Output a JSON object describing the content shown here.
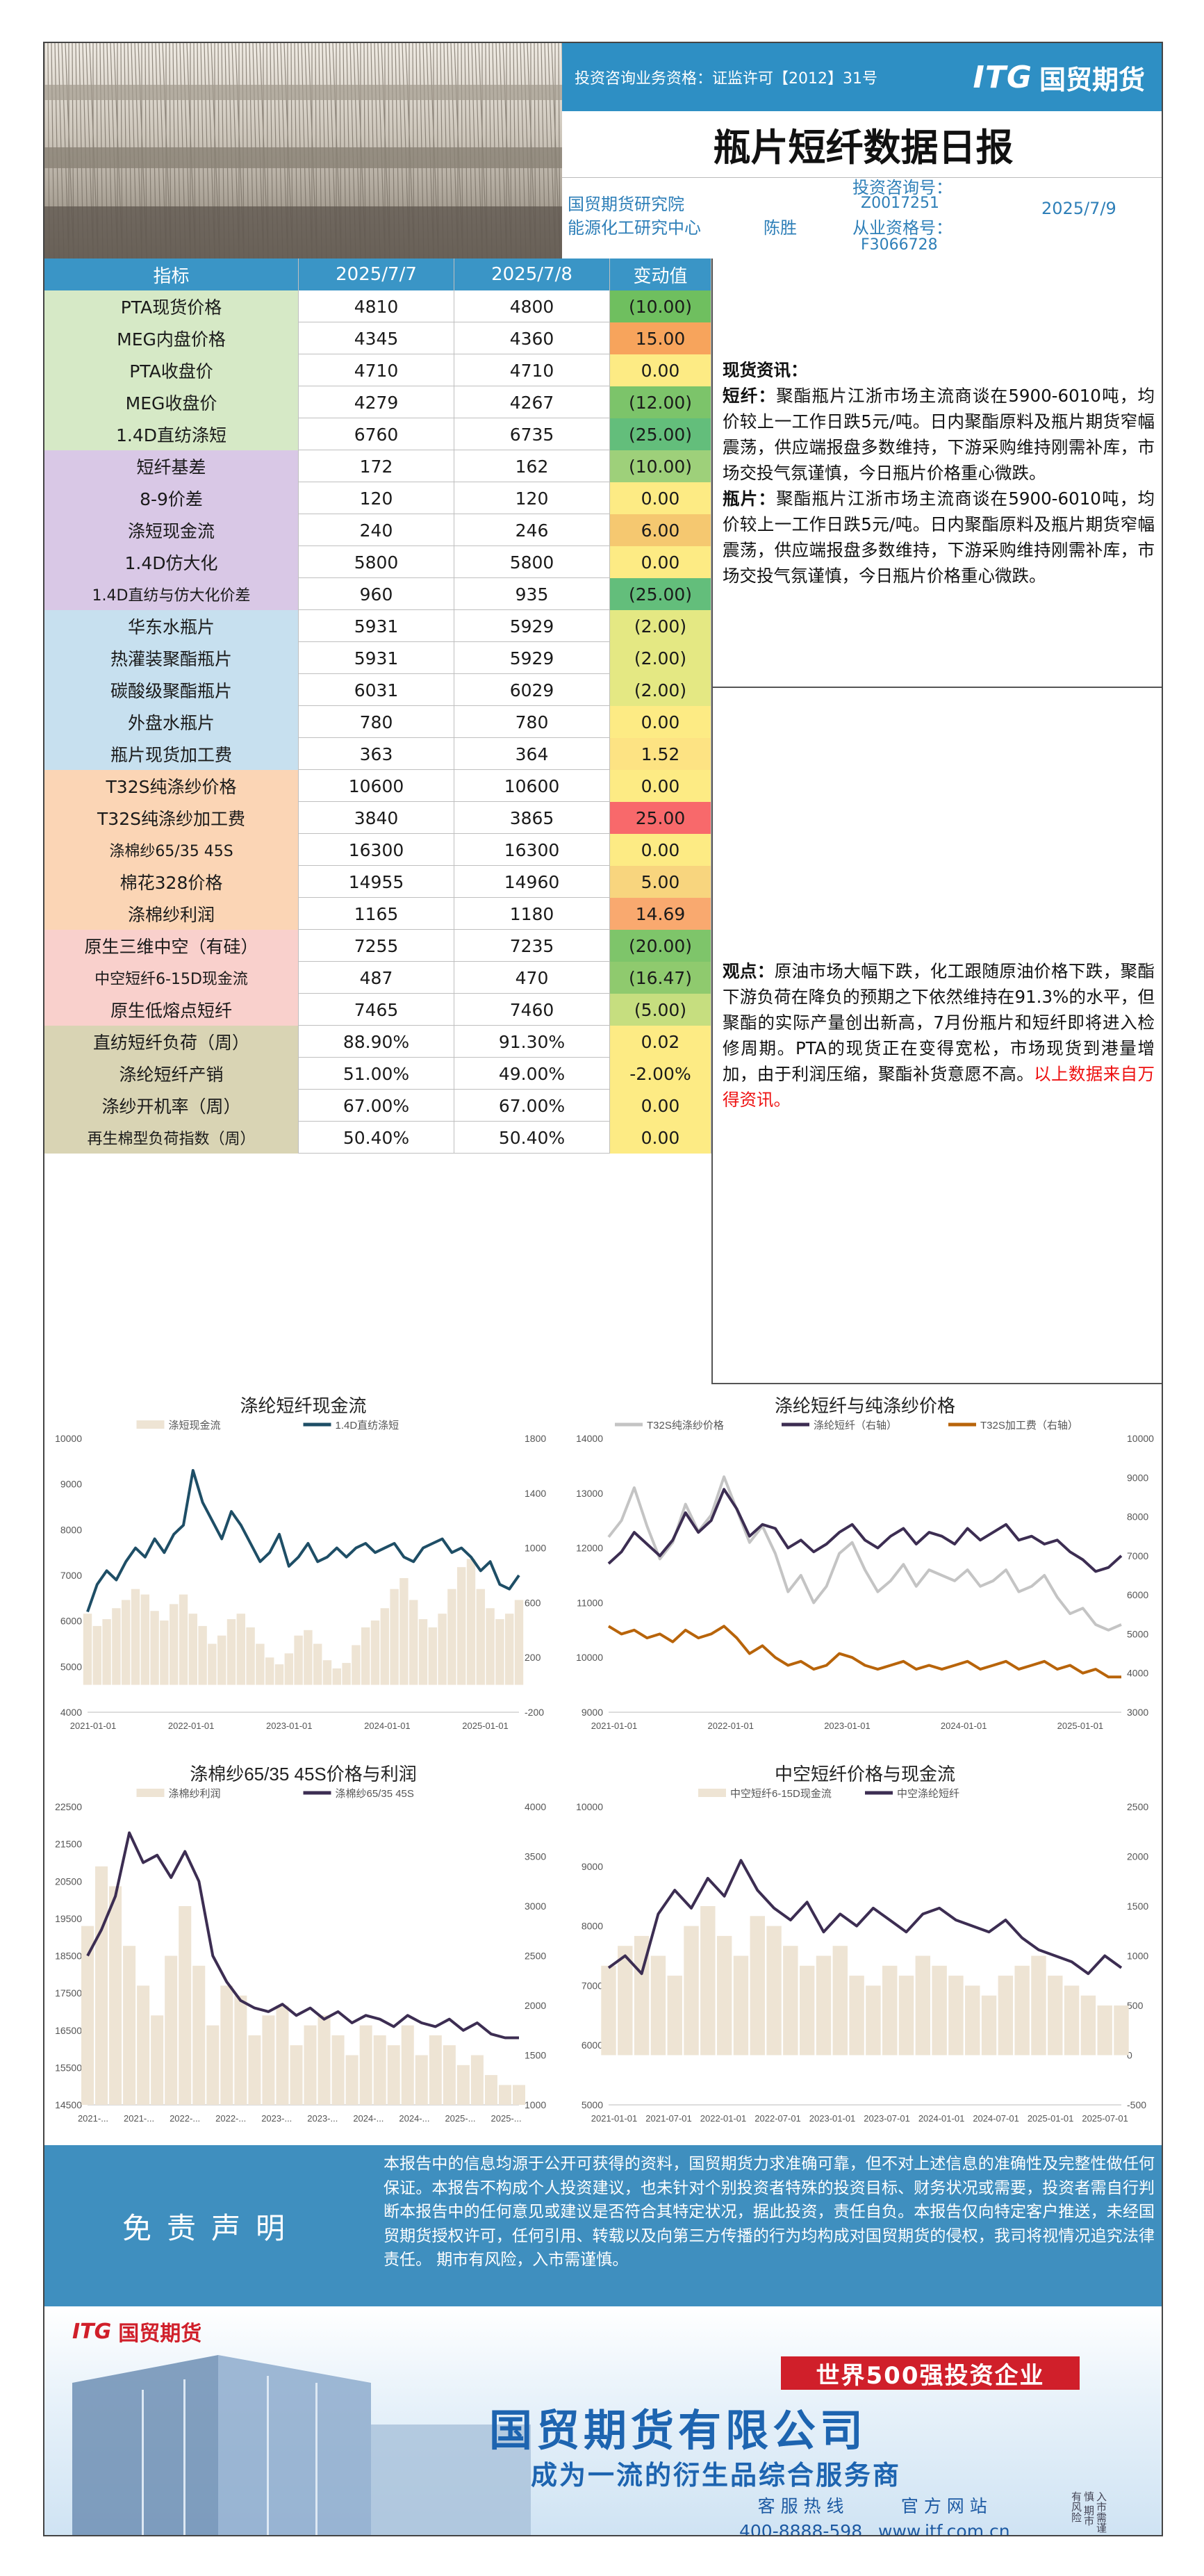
{
  "header": {
    "license": "投资咨询业务资格：证监许可【2012】31号",
    "logo_itg": "ITG",
    "logo_cn": "国贸期货",
    "title": "瓶片短纤数据日报",
    "org1": "国贸期货研究院",
    "org2": "能源化工研究中心",
    "analyst": "陈胜",
    "consult_label": "投资咨询号：",
    "consult_no": "Z0017251",
    "practice_label": "从业资格号：",
    "practice_no": "F3066728",
    "date": "2025/7/9"
  },
  "table": {
    "headers": [
      "指标",
      "2025/7/7",
      "2025/7/8",
      "变动值"
    ],
    "rows": [
      {
        "name": "PTA现货价格",
        "v1": "4810",
        "v2": "4800",
        "chg": "(10.00)",
        "name_bg": "#d6e9c6",
        "chg_bg": "#6fbf5f"
      },
      {
        "name": "MEG内盘价格",
        "v1": "4345",
        "v2": "4360",
        "chg": "15.00",
        "name_bg": "#d6e9c6",
        "chg_bg": "#f7a45c"
      },
      {
        "name": "PTA收盘价",
        "v1": "4710",
        "v2": "4710",
        "chg": "0.00",
        "name_bg": "#d6e9c6",
        "chg_bg": "#fdeb84"
      },
      {
        "name": "MEG收盘价",
        "v1": "4279",
        "v2": "4267",
        "chg": "(12.00)",
        "name_bg": "#d6e9c6",
        "chg_bg": "#7cc46a"
      },
      {
        "name": "1.4D直纺涤短",
        "v1": "6760",
        "v2": "6735",
        "chg": "(25.00)",
        "name_bg": "#d6e9c6",
        "chg_bg": "#63be7b"
      },
      {
        "name": "短纤基差",
        "v1": "172",
        "v2": "162",
        "chg": "(10.00)",
        "name_bg": "#d9c8e6",
        "chg_bg": "#9ed07a"
      },
      {
        "name": "8-9价差",
        "v1": "120",
        "v2": "120",
        "chg": "0.00",
        "name_bg": "#d9c8e6",
        "chg_bg": "#fdeb84"
      },
      {
        "name": "涤短现金流",
        "v1": "240",
        "v2": "246",
        "chg": "6.00",
        "name_bg": "#d9c8e6",
        "chg_bg": "#f5c870"
      },
      {
        "name": "1.4D仿大化",
        "v1": "5800",
        "v2": "5800",
        "chg": "0.00",
        "name_bg": "#d9c8e6",
        "chg_bg": "#fdeb84"
      },
      {
        "name": "1.4D直纺与仿大化价差",
        "v1": "960",
        "v2": "935",
        "chg": "(25.00)",
        "name_bg": "#d9c8e6",
        "chg_bg": "#63be7b"
      },
      {
        "name": "华东水瓶片",
        "v1": "5931",
        "v2": "5929",
        "chg": "(2.00)",
        "name_bg": "#c7e0ef",
        "chg_bg": "#e4e883"
      },
      {
        "name": "热灌装聚酯瓶片",
        "v1": "5931",
        "v2": "5929",
        "chg": "(2.00)",
        "name_bg": "#c7e0ef",
        "chg_bg": "#e4e883"
      },
      {
        "name": "碳酸级聚酯瓶片",
        "v1": "6031",
        "v2": "6029",
        "chg": "(2.00)",
        "name_bg": "#c7e0ef",
        "chg_bg": "#e4e883"
      },
      {
        "name": "外盘水瓶片",
        "v1": "780",
        "v2": "780",
        "chg": "0.00",
        "name_bg": "#c7e0ef",
        "chg_bg": "#fdeb84"
      },
      {
        "name": "瓶片现货加工费",
        "v1": "363",
        "v2": "364",
        "chg": "1.52",
        "name_bg": "#c7e0ef",
        "chg_bg": "#fde383"
      },
      {
        "name": "T32S纯涤纱价格",
        "v1": "10600",
        "v2": "10600",
        "chg": "0.00",
        "name_bg": "#fbd5b5",
        "chg_bg": "#fdeb84"
      },
      {
        "name": "T32S纯涤纱加工费",
        "v1": "3840",
        "v2": "3865",
        "chg": "25.00",
        "name_bg": "#fbd5b5",
        "chg_bg": "#f8696b"
      },
      {
        "name": "涤棉纱65/35 45S",
        "v1": "16300",
        "v2": "16300",
        "chg": "0.00",
        "name_bg": "#fbd5b5",
        "chg_bg": "#fdeb84"
      },
      {
        "name": "棉花328价格",
        "v1": "14955",
        "v2": "14960",
        "chg": "5.00",
        "name_bg": "#fbd5b5",
        "chg_bg": "#f8d57e"
      },
      {
        "name": "涤棉纱利润",
        "v1": "1165",
        "v2": "1180",
        "chg": "14.69",
        "name_bg": "#fbd5b5",
        "chg_bg": "#f9a96f"
      },
      {
        "name": "原生三维中空（有硅）",
        "v1": "7255",
        "v2": "7235",
        "chg": "(20.00)",
        "name_bg": "#f9d0cc",
        "chg_bg": "#7ec56a"
      },
      {
        "name": "中空短纤6-15D现金流",
        "v1": "487",
        "v2": "470",
        "chg": "(16.47)",
        "name_bg": "#f9d0cc",
        "chg_bg": "#8fca6e"
      },
      {
        "name": "原生低熔点短纤",
        "v1": "7465",
        "v2": "7460",
        "chg": "(5.00)",
        "name_bg": "#f9d0cc",
        "chg_bg": "#c6de7f"
      },
      {
        "name": "直纺短纤负荷（周）",
        "v1": "88.90%",
        "v2": "91.30%",
        "chg": "0.02",
        "name_bg": "#d9d4b4",
        "chg_bg": "#fdeb84"
      },
      {
        "name": "涤纶短纤产销",
        "v1": "51.00%",
        "v2": "49.00%",
        "chg": "-2.00%",
        "name_bg": "#d9d4b4",
        "chg_bg": "#fdeb84"
      },
      {
        "name": "涤纱开机率（周）",
        "v1": "67.00%",
        "v2": "67.00%",
        "chg": "0.00",
        "name_bg": "#d9d4b4",
        "chg_bg": "#fdeb84"
      },
      {
        "name": "再生棉型负荷指数（周）",
        "v1": "50.40%",
        "v2": "50.40%",
        "chg": "0.00",
        "name_bg": "#d9d4b4",
        "chg_bg": "#fdeb84"
      }
    ]
  },
  "commentary": {
    "spot_title": "现货资讯：",
    "pf_label": "短纤：",
    "pf_text": "聚酯瓶片江浙市场主流商谈在5900-6010吨，均价较上一工作日跌5元/吨。日内聚酯原料及瓶片期货窄幅震荡，供应端报盘多数维持，下游采购维持刚需补库，市场交投气氛谨慎，今日瓶片价格重心微跌。",
    "bottle_label": "瓶片：",
    "bottle_text": "聚酯瓶片江浙市场主流商谈在5900-6010吨，均价较上一工作日跌5元/吨。日内聚酯原料及瓶片期货窄幅震荡，供应端报盘多数维持，下游采购维持刚需补库，市场交投气氛谨慎，今日瓶片价格重心微跌。",
    "view_label": "观点：",
    "view_text": "原油市场大幅下跌，化工跟随原油价格下跌，聚酯下游负荷在降负的预期之下依然维持在91.3%的水平，但聚酯的实际产量创出新高，7月份瓶片和短纤即将进入检修周期。PTA的现货正在变得宽松，市场现货到港量增加，由于利润压缩，聚酯补货意愿不高。",
    "source_note": "以上数据来自万得资讯。"
  },
  "chart_data": [
    {
      "type": "line",
      "title": "涤纶短纤现金流",
      "x_ticks": [
        "2021-01-01",
        "2022-01-01",
        "2023-01-01",
        "2024-01-01",
        "2025-01-01"
      ],
      "ylim_left": [
        4000,
        10000
      ],
      "y_ticks_left": [
        "4000",
        "5000",
        "6000",
        "7000",
        "8000",
        "9000",
        "10000"
      ],
      "ylim_right": [
        -200,
        1800
      ],
      "y_ticks_right": [
        "-200",
        "200",
        "600",
        "1000",
        "1400",
        "1800"
      ],
      "series": [
        {
          "name": "涤短现金流",
          "axis": "right",
          "kind": "area",
          "color": "#eee4d4",
          "values": [
            520,
            430,
            480,
            560,
            620,
            700,
            660,
            540,
            470,
            590,
            660,
            520,
            430,
            300,
            360,
            480,
            520,
            420,
            300,
            200,
            150,
            230,
            360,
            400,
            300,
            180,
            120,
            160,
            290,
            420,
            470,
            560,
            700,
            780,
            620,
            480,
            420,
            520,
            700,
            860,
            920,
            700,
            560,
            480,
            520,
            620
          ]
        },
        {
          "name": "1.4D直纺涤短",
          "axis": "left",
          "kind": "line",
          "color": "#1e4e66",
          "values": [
            6200,
            6800,
            7100,
            6900,
            7300,
            7600,
            7400,
            7800,
            7500,
            7900,
            8100,
            9300,
            8600,
            8200,
            7800,
            8400,
            8100,
            7700,
            7300,
            7500,
            7900,
            7200,
            7400,
            7700,
            7300,
            7400,
            7600,
            7400,
            7600,
            7700,
            7500,
            7600,
            7700,
            7400,
            7300,
            7600,
            7700,
            7800,
            7500,
            7600,
            7400,
            7100,
            7300,
            6800,
            6700,
            7000
          ]
        }
      ]
    },
    {
      "type": "line",
      "title": "涤纶短纤与纯涤纱价格",
      "x_ticks": [
        "2021-01-01",
        "2022-01-01",
        "2023-01-01",
        "2024-01-01",
        "2025-01-01"
      ],
      "ylim_left": [
        9000,
        14000
      ],
      "y_ticks_left": [
        "9000",
        "10000",
        "11000",
        "12000",
        "13000",
        "14000"
      ],
      "ylim_right": [
        3000,
        10000
      ],
      "y_ticks_right": [
        "3000",
        "4000",
        "5000",
        "6000",
        "7000",
        "8000",
        "9000",
        "10000"
      ],
      "series": [
        {
          "name": "T32S纯涤纱价格",
          "axis": "left",
          "color": "#c4c4c4",
          "values": [
            12200,
            12500,
            13100,
            12400,
            11800,
            12100,
            12800,
            12300,
            12600,
            13300,
            12700,
            12100,
            12400,
            11900,
            11200,
            11500,
            11000,
            11300,
            11900,
            12100,
            11600,
            11200,
            11400,
            11700,
            11300,
            11600,
            11500,
            11400,
            11600,
            11300,
            11400,
            11600,
            11200,
            11300,
            11500,
            11100,
            10800,
            10900,
            10600,
            10500,
            10600
          ]
        },
        {
          "name": "涤纶短纤（右轴）",
          "axis": "right",
          "color": "#3c2d52",
          "values": [
            6800,
            7100,
            7600,
            7300,
            7000,
            7400,
            8100,
            7600,
            7900,
            8700,
            8200,
            7500,
            7800,
            7700,
            7200,
            7400,
            7100,
            7300,
            7600,
            7800,
            7400,
            7200,
            7500,
            7700,
            7300,
            7600,
            7500,
            7300,
            7700,
            7400,
            7600,
            7800,
            7400,
            7500,
            7300,
            7400,
            7100,
            6900,
            6600,
            6700,
            7000
          ]
        },
        {
          "name": "T32S加工费（右轴）",
          "axis": "right",
          "color": "#b8640a",
          "values": [
            5200,
            5000,
            5100,
            4900,
            5000,
            4800,
            5100,
            4900,
            5000,
            5200,
            4900,
            4500,
            4700,
            4400,
            4200,
            4300,
            4100,
            4200,
            4500,
            4400,
            4200,
            4100,
            4200,
            4300,
            4100,
            4200,
            4100,
            4200,
            4300,
            4100,
            4200,
            4300,
            4100,
            4200,
            4300,
            4100,
            4200,
            4000,
            4100,
            3900,
            3900
          ]
        }
      ]
    },
    {
      "type": "line",
      "title": "涤棉纱65/35 45S价格与利润",
      "x_ticks": [
        "2021-...",
        "2021-...",
        "2022-...",
        "2022-...",
        "2023-...",
        "2023-...",
        "2024-...",
        "2024-...",
        "2025-...",
        "2025-..."
      ],
      "ylim_left": [
        14500,
        22500
      ],
      "y_ticks_left": [
        "14500",
        "15500",
        "16500",
        "17500",
        "18500",
        "19500",
        "20500",
        "21500",
        "22500"
      ],
      "ylim_right": [
        1000,
        4000
      ],
      "y_ticks_right": [
        "1000",
        "1500",
        "2000",
        "2500",
        "3000",
        "3500",
        "4000"
      ],
      "series": [
        {
          "name": "涤棉纱利润",
          "axis": "right",
          "kind": "area",
          "color": "#eee4d4",
          "values": [
            2800,
            3400,
            3200,
            2600,
            2200,
            1900,
            2500,
            3000,
            2400,
            1800,
            2200,
            2100,
            1700,
            1900,
            2000,
            1600,
            1800,
            1900,
            1700,
            1500,
            1800,
            1700,
            1600,
            1800,
            1500,
            1700,
            1600,
            1400,
            1500,
            1300,
            1200,
            1200
          ]
        },
        {
          "name": "涤棉纱65/35 45S",
          "axis": "left",
          "kind": "line",
          "color": "#3c2d52",
          "values": [
            18500,
            19200,
            20100,
            21800,
            21000,
            21200,
            20600,
            21300,
            20500,
            18500,
            17800,
            17300,
            17100,
            17000,
            17200,
            16900,
            17100,
            16800,
            17000,
            16700,
            16900,
            16800,
            16600,
            16900,
            16700,
            16600,
            16800,
            16500,
            16700,
            16400,
            16300,
            16300
          ]
        }
      ]
    },
    {
      "type": "line",
      "title": "中空短纤价格与现金流",
      "x_ticks": [
        "2021-01-01",
        "2021-07-01",
        "2022-01-01",
        "2022-07-01",
        "2023-01-01",
        "2023-07-01",
        "2024-01-01",
        "2024-07-01",
        "2025-01-01",
        "2025-07-01"
      ],
      "ylim_left": [
        5000,
        10000
      ],
      "y_ticks_left": [
        "5000",
        "6000",
        "7000",
        "8000",
        "9000",
        "10000"
      ],
      "ylim_right": [
        -500,
        2500
      ],
      "y_ticks_right": [
        "-500",
        "0",
        "500",
        "1000",
        "1500",
        "2000",
        "2500"
      ],
      "series": [
        {
          "name": "中空短纤6-15D现金流",
          "axis": "right",
          "kind": "area",
          "color": "#eee4d4",
          "values": [
            900,
            1100,
            1200,
            1000,
            800,
            1300,
            1500,
            1200,
            1000,
            1400,
            1300,
            1100,
            900,
            1000,
            1100,
            800,
            700,
            900,
            800,
            1000,
            900,
            800,
            700,
            600,
            800,
            900,
            1000,
            800,
            700,
            600,
            500,
            500
          ]
        },
        {
          "name": "中空涤纶短纤",
          "axis": "left",
          "kind": "line",
          "color": "#3c2d52",
          "values": [
            7300,
            7500,
            7200,
            8200,
            8600,
            8300,
            8800,
            8500,
            9100,
            8600,
            8300,
            8100,
            8400,
            7900,
            8200,
            8000,
            8300,
            8100,
            7900,
            8200,
            8300,
            8100,
            8000,
            7900,
            8100,
            7800,
            7600,
            7500,
            7400,
            7200,
            7500,
            7300
          ]
        }
      ]
    }
  ],
  "disclaimer": {
    "title": "免责声明",
    "text": "本报告中的信息均源于公开可获得的资料，国贸期货力求准确可靠，但不对上述信息的准确性及完整性做任何保证。本报告不构成个人投资建议，也未针对个别投资者特殊的投资目标、财务状况或需要，投资者需自行判断本报告中的任何意见或建议是否符合其特定状况，据此投资，责任自负。本报告仅向特定客户推送，未经国贸期货授权许可，任何引用、转载以及向第三方传播的行为均构成对国贸期货的侵权，我司将视情况追究法律责任。 期市有风险，入市需谨慎。"
  },
  "ad": {
    "logo_itg": "ITG",
    "logo_cn": "国贸期货",
    "badge": "世界500强投资企业",
    "company": "国贸期货有限公司",
    "slogan": "成为一流的衍生品综合服务商",
    "hotline_label": "客 服 热 线",
    "hotline": "400-8888-598",
    "website_label": "官 方 网 站",
    "website": "www.itf.com.cn",
    "vert_note": "入市需谨慎 期市有风险"
  }
}
